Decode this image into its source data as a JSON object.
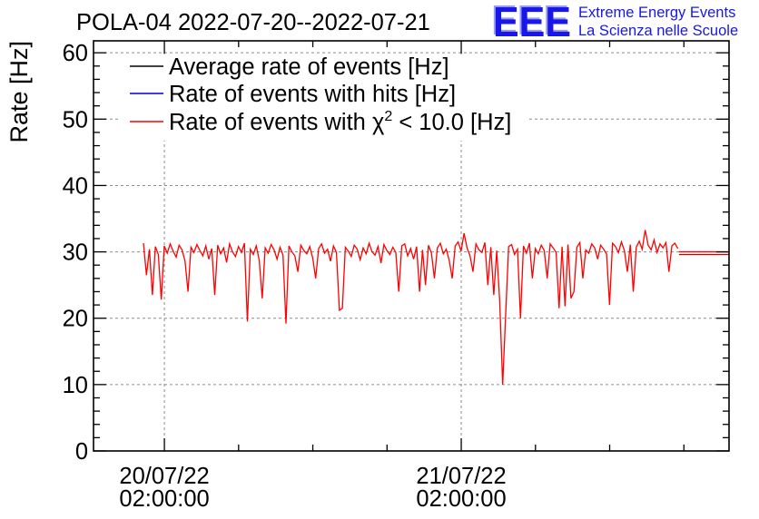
{
  "logo": {
    "mark": "EEE",
    "line1": "Extreme Energy Events",
    "line2": "La Scienza nelle Scuole",
    "color": "#1717e8",
    "shadow_color": "#9a9aff"
  },
  "chart_data": {
    "type": "line",
    "title": "POLA-04 2022-07-20--2022-07-21",
    "ylabel": "Rate [Hz]",
    "ylim": [
      0,
      61.8
    ],
    "y_ticks": [
      0,
      10,
      20,
      30,
      40,
      50,
      60
    ],
    "y_minor_step": 2,
    "xlim_hours": [
      -3.73,
      47.65
    ],
    "x_ticks": [
      {
        "hour": 2,
        "date": "20/07/22",
        "time": "02:00:00"
      },
      {
        "hour": 26,
        "date": "21/07/22",
        "time": "02:00:00"
      }
    ],
    "x_minor_ticks_hours": [
      8,
      14,
      20,
      32,
      38,
      44
    ],
    "grid": true,
    "legend": {
      "placement": "top-left",
      "entries": [
        {
          "label": "Average rate of events [Hz]",
          "color": "#000000"
        },
        {
          "label": "Rate of events with hits [Hz]",
          "color": "#0000cc"
        },
        {
          "label_prefix": "Rate of events with χ",
          "label_sup": "2",
          "label_suffix": " < 10.0 [Hz]",
          "color": "#ff0000"
        }
      ]
    },
    "series": [
      {
        "legend_entry": 2,
        "color": "#ff0000",
        "x_start_hours": 0.31,
        "x_step_hours": 0.24,
        "values": [
          31.3,
          26.5,
          30.4,
          23.5,
          30.8,
          29.6,
          22.8,
          30.9,
          29.8,
          31.2,
          30.1,
          29.2,
          31.0,
          30.3,
          28.6,
          24.0,
          30.7,
          29.9,
          31.1,
          30.2,
          29.4,
          30.9,
          28.9,
          30.5,
          23.5,
          31.0,
          29.7,
          30.6,
          28.4,
          31.2,
          30.0,
          29.3,
          30.8,
          29.9,
          31.3,
          19.5,
          30.4,
          29.6,
          30.9,
          28.7,
          23.0,
          30.6,
          29.8,
          31.1,
          30.3,
          28.9,
          30.7,
          29.5,
          19.2,
          30.9,
          30.0,
          29.4,
          27.0,
          31.0,
          30.2,
          29.7,
          30.8,
          29.1,
          26.0,
          30.5,
          31.2,
          29.8,
          30.4,
          28.6,
          30.9,
          29.9,
          21.2,
          21.5,
          30.7,
          30.1,
          29.3,
          31.0,
          30.4,
          28.8,
          30.6,
          29.7,
          31.3,
          30.0,
          29.5,
          30.8,
          28.3,
          31.1,
          30.2,
          29.6,
          30.7,
          29.9,
          24.0,
          30.9,
          31.2,
          29.4,
          30.5,
          28.9,
          30.8,
          24.0,
          30.3,
          25.0,
          31.0,
          29.8,
          26.0,
          30.6,
          31.3,
          29.7,
          30.4,
          28.7,
          26.0,
          30.9,
          31.5,
          30.1,
          32.8,
          30.6,
          29.4,
          27.0,
          31.2,
          30.3,
          29.9,
          31.4,
          25.0,
          30.7,
          23.5,
          30.2,
          22.5,
          10.0,
          20.5,
          30.8,
          31.1,
          29.6,
          30.4,
          20.0,
          30.9,
          29.8,
          31.3,
          26.0,
          30.5,
          29.7,
          31.0,
          30.2,
          26.0,
          31.2,
          30.6,
          29.9,
          21.5,
          30.8,
          21.8,
          31.1,
          23.0,
          24.0,
          30.7,
          31.4,
          26.0,
          30.3,
          29.8,
          31.2,
          30.6,
          28.9,
          31.0,
          30.4,
          29.7,
          22.0,
          31.3,
          30.8,
          29.9,
          31.5,
          30.2,
          27.0,
          31.1,
          24.0,
          30.7,
          31.6,
          30.4,
          33.3,
          31.0,
          30.3,
          31.8,
          29.9,
          31.2,
          30.6,
          31.4,
          27.0,
          30.9,
          31.3,
          30.5
        ]
      }
    ],
    "tail_lines": [
      {
        "y": 30.0,
        "x_hours": [
          43.6,
          47.65
        ],
        "color": "#ff0000"
      },
      {
        "y": 29.6,
        "x_hours": [
          43.6,
          47.65
        ],
        "color": "#cc0000"
      }
    ]
  }
}
